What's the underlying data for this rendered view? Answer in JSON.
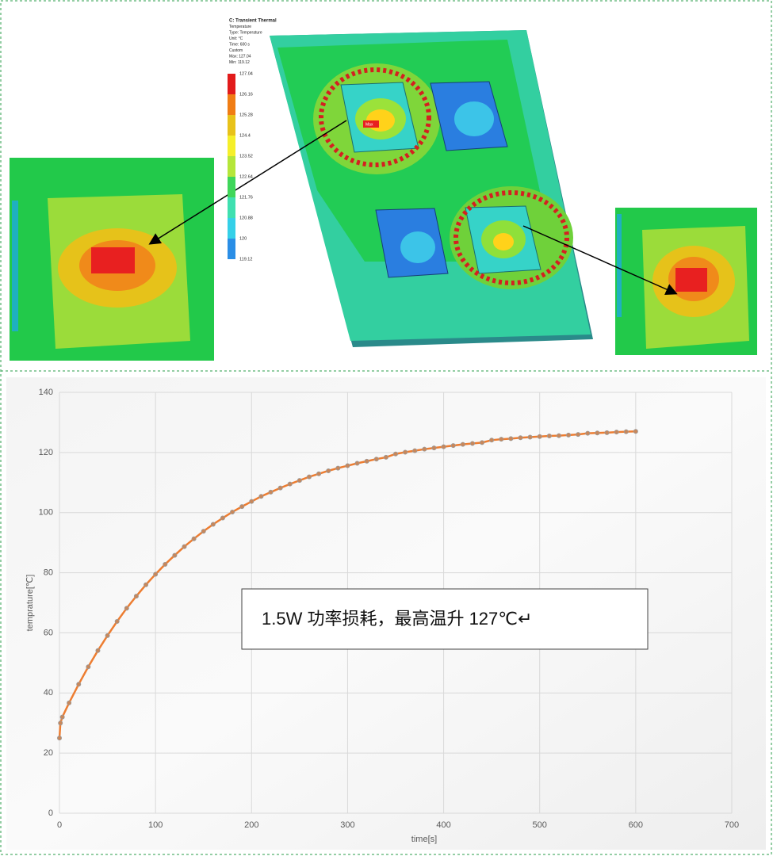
{
  "thermal": {
    "legend_header": [
      "C: Transient Thermal",
      "Temperature",
      "Type: Temperature",
      "Unit: °C",
      "Time: 600 s",
      "Custom",
      "Max: 127.04",
      "Min: 119.12"
    ],
    "legend_values": [
      "127.04",
      "126.16",
      "125.28",
      "124.4",
      "123.52",
      "122.64",
      "121.76",
      "120.88",
      "120",
      "119.12"
    ],
    "max_tag": "Max"
  },
  "chart_data": {
    "type": "line",
    "x_label": "time[s]",
    "y_label": "temprature[℃]",
    "annotation": "1.5W 功率损耗，最高温升 127℃↵",
    "x": [
      0,
      1,
      3,
      10,
      20,
      30,
      40,
      50,
      60,
      70,
      80,
      90,
      100,
      110,
      120,
      130,
      140,
      150,
      160,
      170,
      180,
      190,
      200,
      210,
      220,
      230,
      240,
      250,
      260,
      270,
      280,
      290,
      300,
      310,
      320,
      330,
      340,
      350,
      360,
      370,
      380,
      390,
      400,
      410,
      420,
      430,
      440,
      450,
      460,
      470,
      480,
      490,
      500,
      510,
      520,
      530,
      540,
      550,
      560,
      570,
      580,
      590,
      600
    ],
    "series": [
      {
        "color": "#ed7d31",
        "values": [
          25,
          30,
          32,
          36.7,
          42.9,
          48.7,
          54.1,
          59.1,
          63.8,
          68.2,
          72.2,
          76.0,
          79.5,
          82.8,
          85.8,
          88.7,
          91.3,
          93.8,
          96.1,
          98.2,
          100.2,
          102.0,
          103.7,
          105.4,
          106.8,
          108.2,
          109.5,
          110.7,
          111.9,
          112.9,
          113.9,
          114.8,
          115.6,
          116.4,
          117.1,
          117.8,
          118.4,
          119.5,
          120.1,
          120.6,
          121.1,
          121.5,
          121.9,
          122.3,
          122.7,
          123.0,
          123.3,
          124.1,
          124.4,
          124.6,
          124.9,
          125.1,
          125.3,
          125.5,
          125.6,
          125.8,
          126.0,
          126.4,
          126.5,
          126.6,
          126.8,
          126.9,
          127.0
        ]
      }
    ],
    "xlim": [
      0,
      700
    ],
    "xticks": [
      0,
      100,
      200,
      300,
      400,
      500,
      600,
      700
    ],
    "ylim": [
      0,
      140
    ],
    "yticks": [
      0,
      20,
      40,
      60,
      80,
      100,
      120,
      140
    ],
    "grid": true
  }
}
